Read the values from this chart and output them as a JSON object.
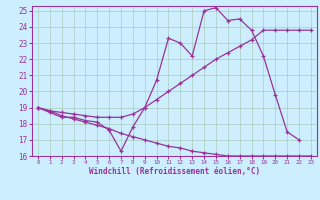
{
  "xlabel": "Windchill (Refroidissement éolien,°C)",
  "background_color": "#cceeff",
  "grid_color": "#aaccbb",
  "line_color": "#993399",
  "xlim": [
    -0.5,
    23.5
  ],
  "ylim": [
    16,
    25.3
  ],
  "yticks": [
    16,
    17,
    18,
    19,
    20,
    21,
    22,
    23,
    24,
    25
  ],
  "xticks": [
    0,
    1,
    2,
    3,
    4,
    5,
    6,
    7,
    8,
    9,
    10,
    11,
    12,
    13,
    14,
    15,
    16,
    17,
    18,
    19,
    20,
    21,
    22,
    23
  ],
  "line1_x": [
    0,
    1,
    2,
    3,
    4,
    5,
    6,
    7,
    8,
    9,
    10,
    11,
    12,
    13,
    14,
    15,
    16,
    17,
    18,
    19,
    20,
    21,
    22
  ],
  "line1_y": [
    19,
    18.7,
    18.4,
    18.4,
    18.2,
    18.1,
    17.6,
    16.3,
    17.8,
    19.0,
    20.7,
    23.3,
    23.0,
    22.2,
    25.0,
    25.2,
    24.4,
    24.5,
    23.8,
    22.2,
    19.8,
    17.5,
    17.0
  ],
  "line2_x": [
    0,
    1,
    2,
    3,
    4,
    5,
    6,
    7,
    8,
    9,
    10,
    11,
    12,
    13,
    14,
    15,
    16,
    17,
    18,
    19,
    20,
    21,
    22,
    23
  ],
  "line2_y": [
    19,
    18.8,
    18.7,
    18.6,
    18.5,
    18.4,
    18.4,
    18.4,
    18.6,
    19.0,
    19.5,
    20.0,
    20.5,
    21.0,
    21.5,
    22.0,
    22.4,
    22.8,
    23.2,
    23.8,
    23.8,
    23.8,
    23.8,
    23.8
  ],
  "line3_x": [
    0,
    1,
    2,
    3,
    4,
    5,
    6,
    7,
    8,
    9,
    10,
    11,
    12,
    13,
    14,
    15,
    16,
    17,
    18,
    19,
    20,
    21,
    22,
    23
  ],
  "line3_y": [
    19,
    18.8,
    18.5,
    18.3,
    18.1,
    17.9,
    17.7,
    17.4,
    17.2,
    17.0,
    16.8,
    16.6,
    16.5,
    16.3,
    16.2,
    16.1,
    16.0,
    16.0,
    16.0,
    16.0,
    16.0,
    16.0,
    16.0,
    16.0
  ]
}
